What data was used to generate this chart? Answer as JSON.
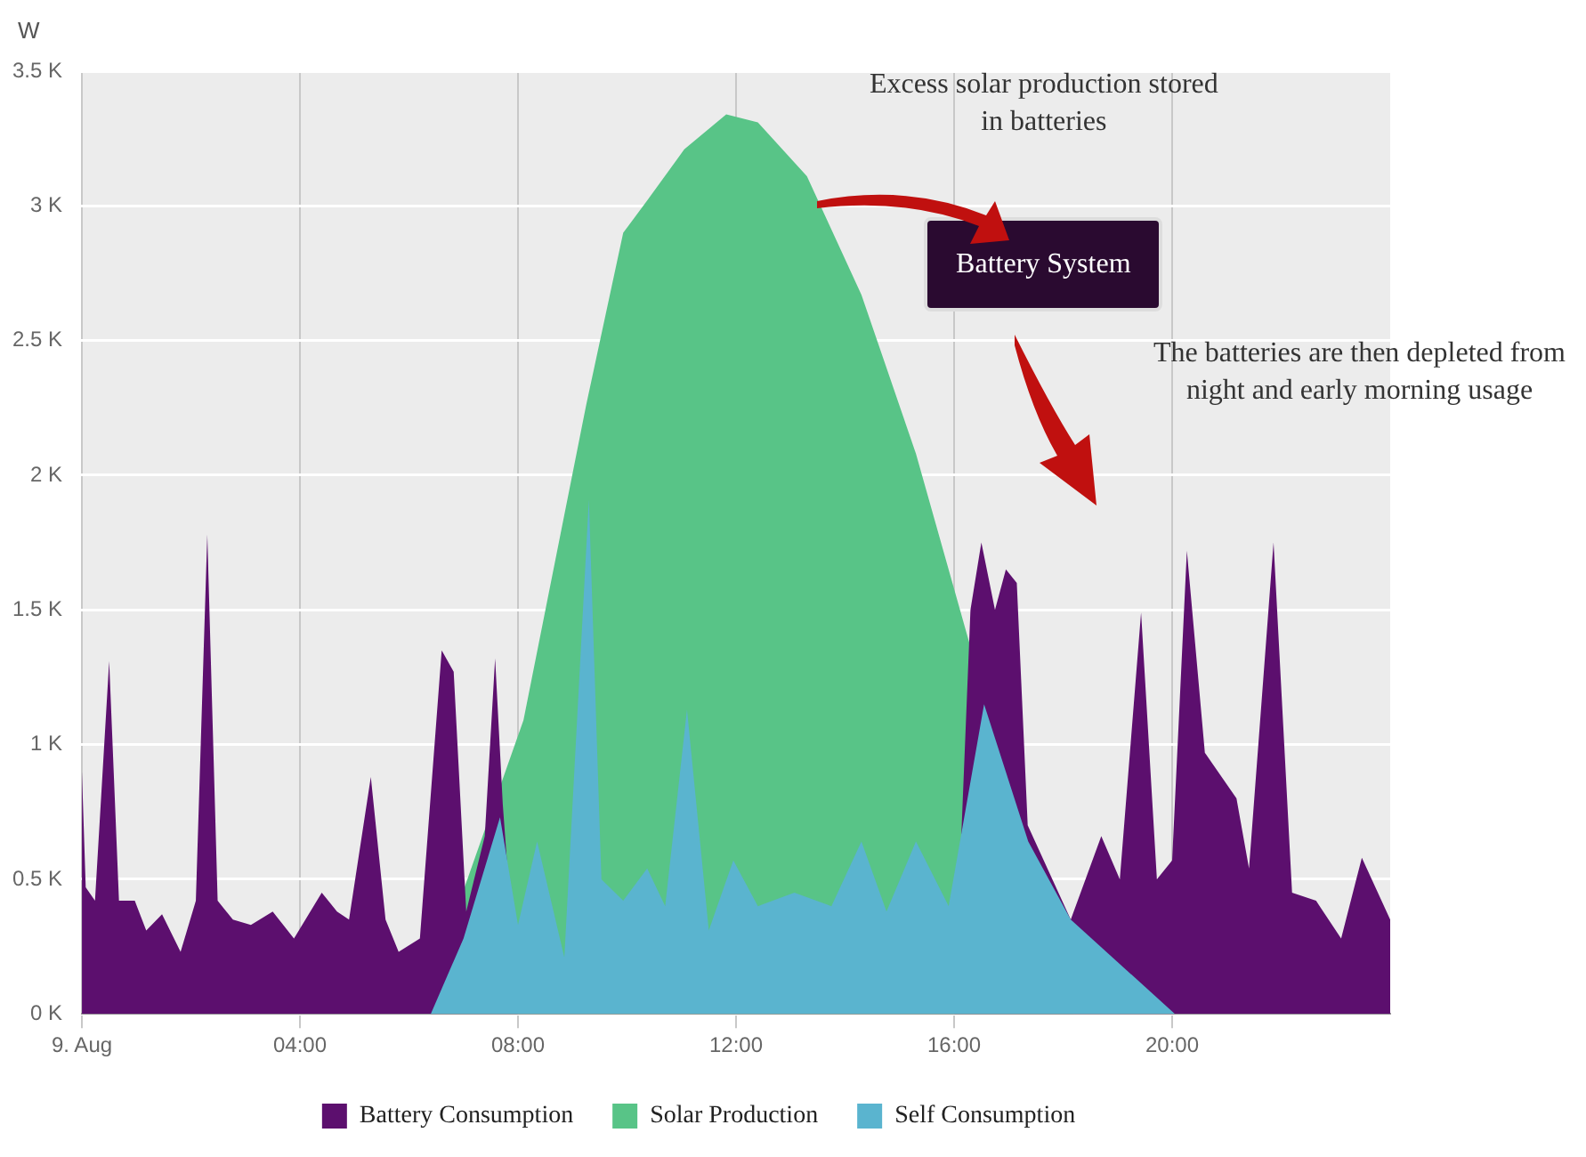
{
  "chart_data": {
    "type": "area",
    "ylabel": "W",
    "xlim": [
      0,
      24
    ],
    "xticks": [
      {
        "value": 0,
        "label": "9. Aug"
      },
      {
        "value": 4,
        "label": "04:00"
      },
      {
        "value": 8,
        "label": "08:00"
      },
      {
        "value": 12,
        "label": "12:00"
      },
      {
        "value": 16,
        "label": "16:00"
      },
      {
        "value": 20,
        "label": "20:00"
      }
    ],
    "ylim": [
      0,
      3500
    ],
    "yticks": [
      {
        "value": 0,
        "label": "0 K"
      },
      {
        "value": 500,
        "label": "0.5 K"
      },
      {
        "value": 1000,
        "label": "1 K"
      },
      {
        "value": 1500,
        "label": "1.5 K"
      },
      {
        "value": 2000,
        "label": "2 K"
      },
      {
        "value": 2500,
        "label": "2.5 K"
      },
      {
        "value": 3000,
        "label": "3 K"
      },
      {
        "value": 3500,
        "label": "3.5 K"
      }
    ],
    "grid": true,
    "legend": "bottom",
    "annotations": [
      "Excess solar production stored in batteries",
      "Battery System",
      "The batteries are then depleted from night and early morning usage"
    ],
    "series": [
      {
        "name": "Battery Consumption",
        "color": "#5c0f6e",
        "x": [
          0,
          0.07,
          0.24,
          0.5,
          0.68,
          0.97,
          1.18,
          1.47,
          1.81,
          2.09,
          2.3,
          2.49,
          2.77,
          3.1,
          3.5,
          3.89,
          4.4,
          4.68,
          4.9,
          5.3,
          5.57,
          5.81,
          6.2,
          6.6,
          6.82,
          7.05,
          7.39,
          7.58,
          7.72,
          8.0,
          16.0,
          16.3,
          16.5,
          16.75,
          16.95,
          17.15,
          17.35,
          18.14,
          18.7,
          19.04,
          19.43,
          19.72,
          20.0,
          20.27,
          20.6,
          21.18,
          21.41,
          21.86,
          22.2,
          22.64,
          23.1,
          23.48,
          24
        ],
        "values": [
          900,
          470,
          420,
          1310,
          420,
          420,
          310,
          370,
          230,
          420,
          1780,
          420,
          350,
          330,
          380,
          280,
          450,
          380,
          350,
          880,
          350,
          230,
          280,
          1350,
          1270,
          380,
          660,
          1320,
          780,
          0,
          0,
          1500,
          1750,
          1500,
          1650,
          1600,
          700,
          350,
          660,
          500,
          1490,
          500,
          570,
          1720,
          970,
          800,
          540,
          1750,
          450,
          420,
          280,
          580,
          350
        ]
      },
      {
        "name": "Solar Production",
        "color": "#58c487",
        "x": [
          6.2,
          8.1,
          9.25,
          9.93,
          10.37,
          11.05,
          11.82,
          12.4,
          13.3,
          14.3,
          15.3,
          18.2
        ],
        "values": [
          0,
          1090,
          2260,
          2900,
          3020,
          3210,
          3340,
          3310,
          3110,
          2670,
          2080,
          0
        ]
      },
      {
        "name": "Self Consumption",
        "color": "#5ab4cf",
        "x": [
          6.4,
          7.0,
          7.67,
          8.0,
          8.35,
          8.85,
          9.3,
          9.53,
          9.93,
          10.37,
          10.7,
          11.1,
          11.5,
          11.95,
          12.4,
          13.07,
          13.75,
          14.3,
          14.76,
          15.3,
          15.9,
          16.55,
          17.36,
          18.14,
          20.05
        ],
        "values": [
          0,
          280,
          730,
          330,
          640,
          210,
          1910,
          500,
          420,
          540,
          400,
          1130,
          310,
          570,
          400,
          450,
          400,
          640,
          380,
          640,
          400,
          1150,
          640,
          350,
          0
        ]
      }
    ]
  }
}
